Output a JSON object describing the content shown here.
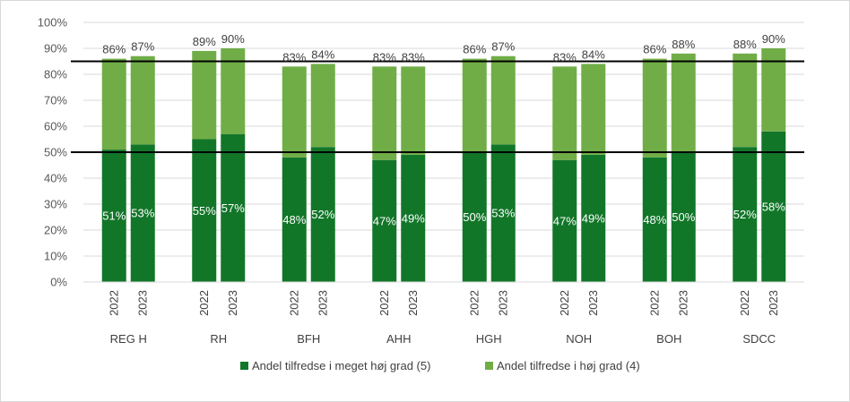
{
  "chart_data": {
    "type": "bar",
    "stacked": true,
    "y_axis": {
      "min": 0,
      "max": 100,
      "step": 10,
      "tick_labels": [
        "0%",
        "10%",
        "20%",
        "30%",
        "40%",
        "50%",
        "60%",
        "70%",
        "80%",
        "90%",
        "100%"
      ]
    },
    "groups": [
      "REG H",
      "RH",
      "BFH",
      "AHH",
      "HGH",
      "NOH",
      "BOH",
      "SDCC"
    ],
    "years": [
      "2022",
      "2023"
    ],
    "series": [
      {
        "name": "Andel tilfredse i meget høj grad (5)",
        "color": "#127629",
        "values": [
          [
            51,
            53
          ],
          [
            55,
            57
          ],
          [
            48,
            52
          ],
          [
            47,
            49
          ],
          [
            50,
            53
          ],
          [
            47,
            49
          ],
          [
            48,
            50
          ],
          [
            52,
            58
          ]
        ],
        "labels": [
          [
            "51%",
            "53%"
          ],
          [
            "55%",
            "57%"
          ],
          [
            "48%",
            "52%"
          ],
          [
            "47%",
            "49%"
          ],
          [
            "50%",
            "53%"
          ],
          [
            "47%",
            "49%"
          ],
          [
            "48%",
            "50%"
          ],
          [
            "52%",
            "58%"
          ]
        ]
      },
      {
        "name": "Andel tilfredse i høj grad (4)",
        "color": "#70ad47",
        "values": [
          [
            34,
            34
          ],
          [
            34,
            33
          ],
          [
            35,
            32
          ],
          [
            36,
            34
          ],
          [
            36,
            34
          ],
          [
            36,
            35
          ],
          [
            38,
            38
          ],
          [
            36,
            32
          ]
        ]
      }
    ],
    "totals": [
      [
        86,
        87
      ],
      [
        89,
        90
      ],
      [
        83,
        84
      ],
      [
        83,
        83
      ],
      [
        86,
        87
      ],
      [
        83,
        84
      ],
      [
        86,
        88
      ],
      [
        88,
        90
      ]
    ],
    "total_labels": [
      [
        "86%",
        "87%"
      ],
      [
        "89%",
        "90%"
      ],
      [
        "83%",
        "84%"
      ],
      [
        "83%",
        "83%"
      ],
      [
        "86%",
        "87%"
      ],
      [
        "83%",
        "84%"
      ],
      [
        "86%",
        "88%"
      ],
      [
        "88%",
        "90%"
      ]
    ],
    "reference_lines": [
      85,
      50
    ],
    "gridlines": true,
    "legend_position": "bottom"
  }
}
